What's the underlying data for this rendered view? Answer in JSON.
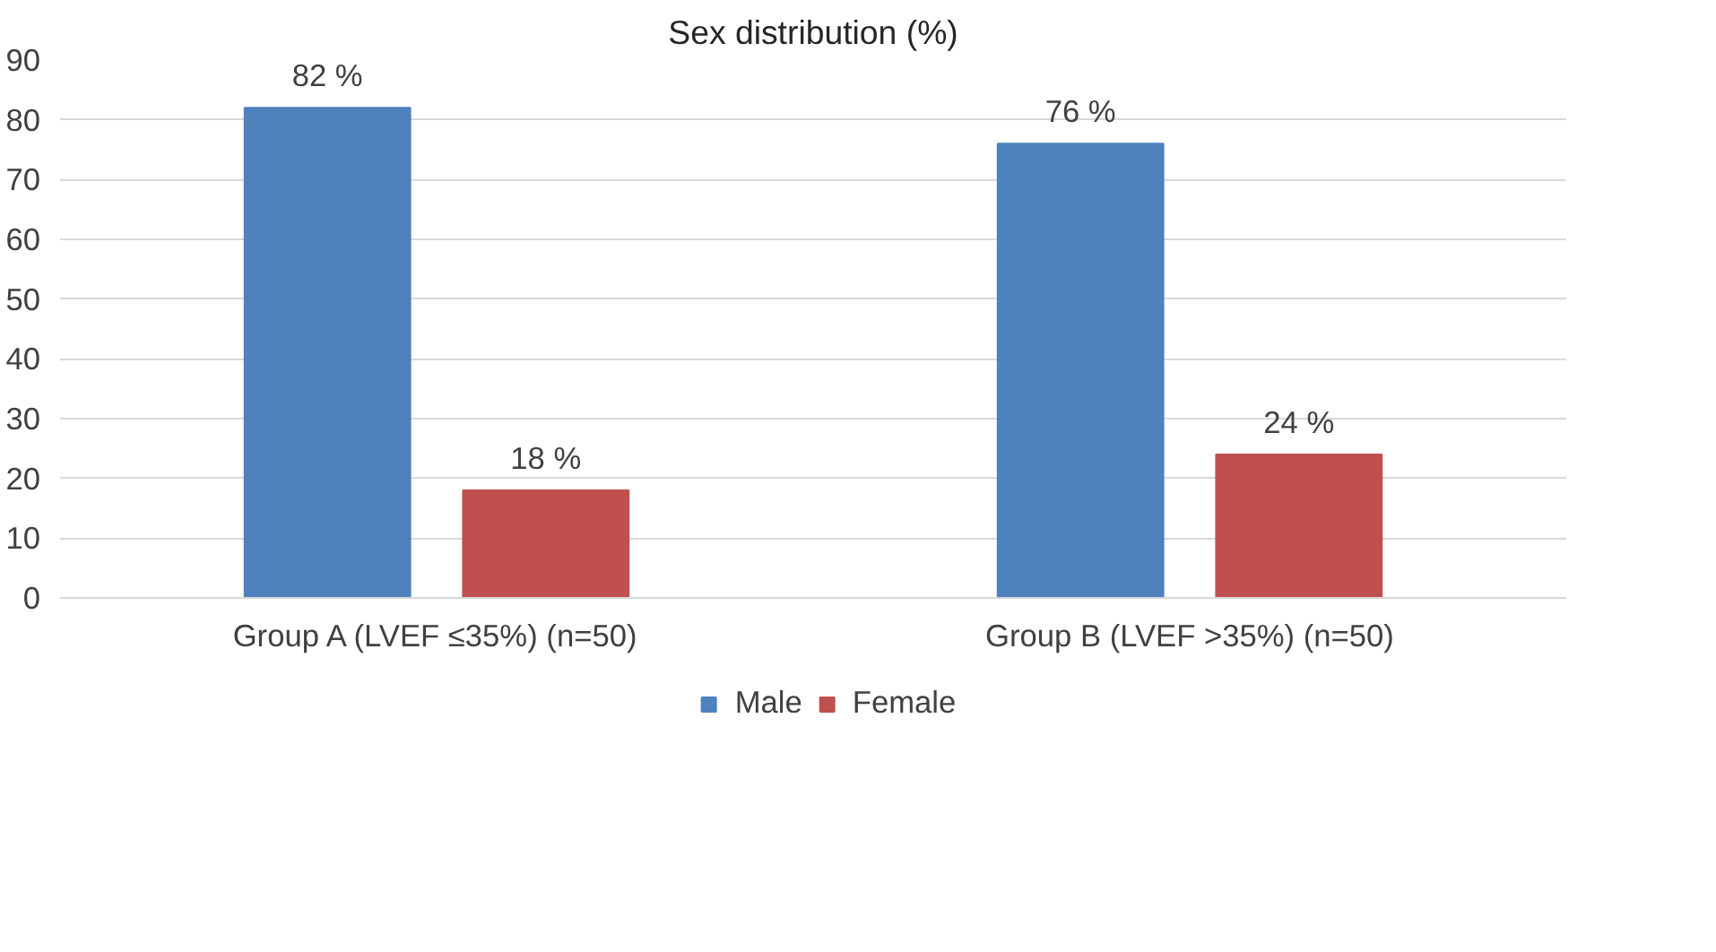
{
  "chart_data": {
    "type": "bar",
    "title": "Sex distribution (%)",
    "categories": [
      "Group A (LVEF ≤35%) (n=50)",
      "Group B (LVEF >35%) (n=50)"
    ],
    "series": [
      {
        "name": "Male",
        "color": "#4f81bd",
        "values": [
          82,
          76
        ],
        "value_labels": [
          "82 %",
          "76 %"
        ]
      },
      {
        "name": "Female",
        "color": "#c0504d",
        "values": [
          18,
          24
        ],
        "value_labels": [
          "18 %",
          "24 %"
        ]
      }
    ],
    "ylim": [
      0,
      90
    ],
    "yticks": [
      0,
      10,
      20,
      30,
      40,
      50,
      60,
      70,
      80,
      90
    ],
    "grid": "y",
    "legend": "bottom"
  }
}
